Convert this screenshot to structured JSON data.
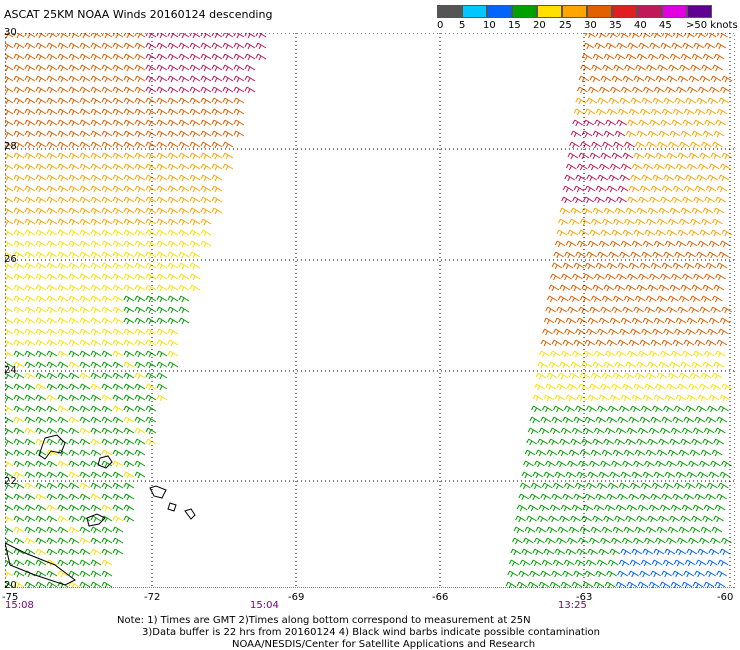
{
  "title": "ASCAT 25KM NOAA Winds 20160124 descending",
  "legend": {
    "labels": [
      "0",
      "5",
      "10",
      "15",
      "20",
      "25",
      "30",
      "35",
      "40",
      "45",
      ">50 knots"
    ],
    "colors": [
      "#555555",
      "#00c8ff",
      "#0064ff",
      "#00a000",
      "#ffe000",
      "#ffa500",
      "#e06000",
      "#e02020",
      "#c0185a",
      "#e000e0",
      "#600090"
    ]
  },
  "axes": {
    "x_ticks": [
      "-75",
      "-72",
      "-69",
      "-66",
      "-63",
      "-60"
    ],
    "y_ticks": [
      "30",
      "28",
      "26",
      "24",
      "22",
      "20"
    ]
  },
  "times": [
    "15:08",
    "15:04",
    "13:25"
  ],
  "notes": {
    "line1": "Note: 1) Times are GMT 2)Times along bottom correspond to measurement at 25N",
    "line2": "3)Data buffer is 22 hrs from 20160124 4) Black wind barbs indicate possible contamination",
    "line3": "NOAA/NESDIS/Center for Satellite Applications and Research"
  }
}
